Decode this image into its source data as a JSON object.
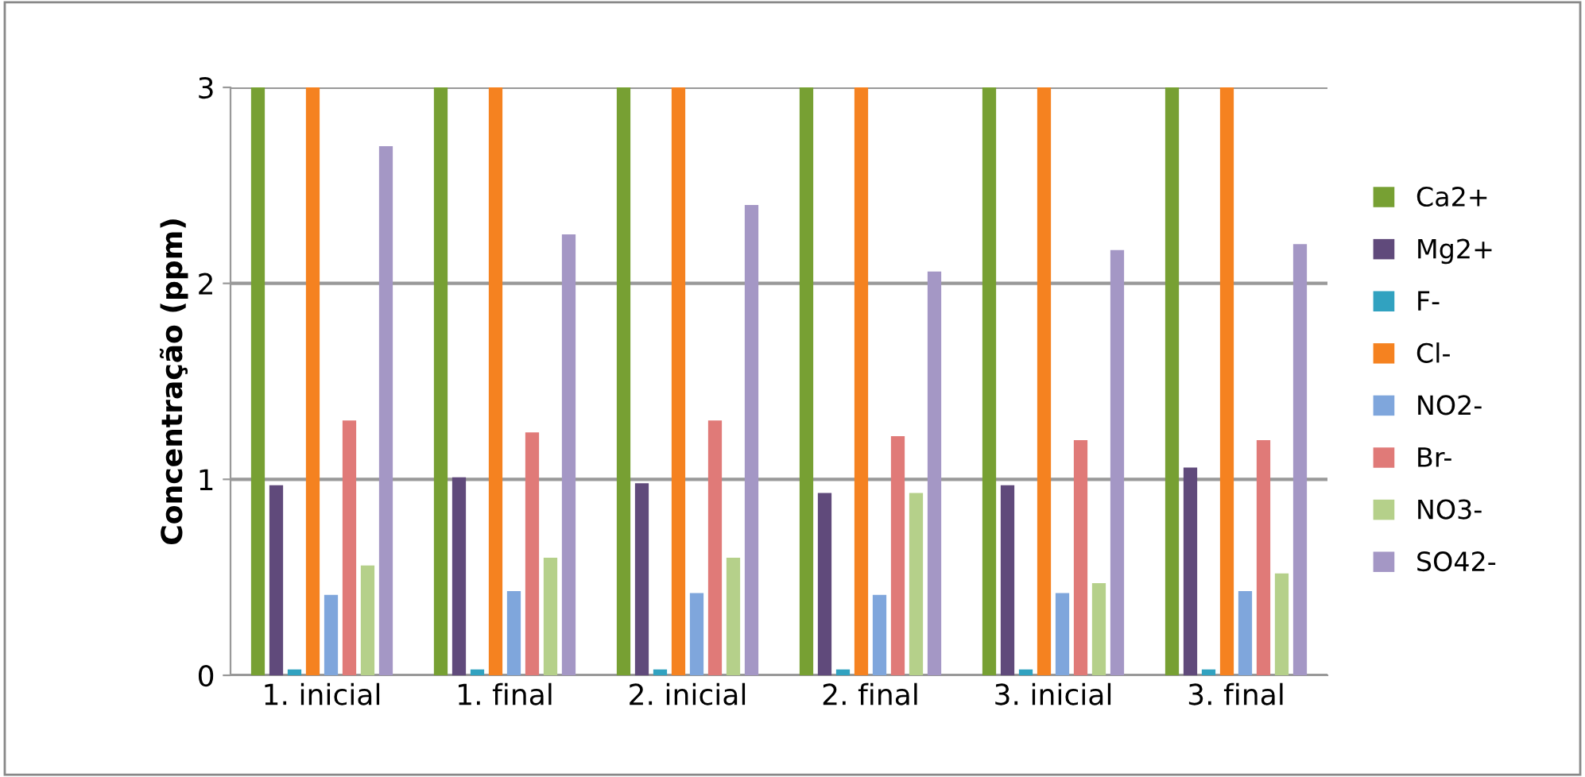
{
  "chart_data": {
    "type": "bar",
    "ylabel": "Concentração (ppm)",
    "categories": [
      "1. inicial",
      "1. final",
      "2. inicial",
      "2. final",
      "3. inicial",
      "3. final"
    ],
    "series": [
      {
        "name": "Ca2+",
        "color": "#77a033",
        "values": [
          3,
          3,
          3,
          3,
          3,
          3
        ]
      },
      {
        "name": "Mg2+",
        "color": "#604a7b",
        "values": [
          0.97,
          1.01,
          0.98,
          0.93,
          0.97,
          1.06
        ]
      },
      {
        "name": "F-",
        "color": "#31a2c0",
        "values": [
          0.03,
          0.03,
          0.03,
          0.03,
          0.03,
          0.03
        ]
      },
      {
        "name": "Cl-",
        "color": "#f58220",
        "values": [
          3,
          3,
          3,
          3,
          3,
          3
        ]
      },
      {
        "name": "NO2-",
        "color": "#7fa6dc",
        "values": [
          0.41,
          0.43,
          0.42,
          0.41,
          0.42,
          0.43
        ]
      },
      {
        "name": "Br-",
        "color": "#e07a78",
        "values": [
          1.3,
          1.24,
          1.3,
          1.22,
          1.2,
          1.2
        ]
      },
      {
        "name": "NO3-",
        "color": "#b5d08a",
        "values": [
          0.56,
          0.6,
          0.6,
          0.93,
          0.47,
          0.52
        ]
      },
      {
        "name": "SO42-",
        "color": "#a497c5",
        "values": [
          2.7,
          2.25,
          2.4,
          2.06,
          2.17,
          2.2
        ]
      }
    ],
    "ylim": [
      0,
      3
    ],
    "yticks": [
      0,
      1,
      2,
      3
    ],
    "grid": "y",
    "legend": "right"
  }
}
